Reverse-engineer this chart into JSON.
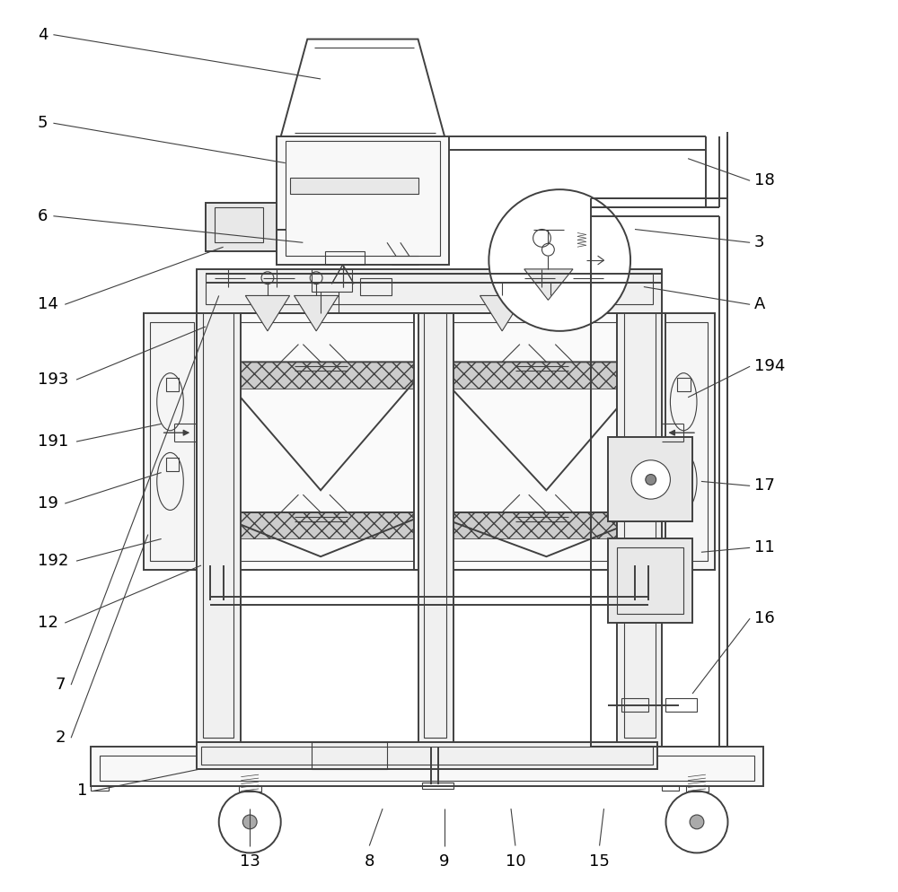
{
  "fig_width": 10.0,
  "fig_height": 9.94,
  "dpi": 100,
  "lc": "#404040",
  "lw": 1.4,
  "tlw": 0.8,
  "fs": 13,
  "bg": "#ffffff",
  "xlim": [
    0,
    100
  ],
  "ylim": [
    0,
    100
  ],
  "labels_left": [
    [
      "4",
      3.5,
      96.5,
      35.5,
      91.5
    ],
    [
      "5",
      3.5,
      86.5,
      31.5,
      82.0
    ],
    [
      "6",
      3.5,
      76.0,
      33.5,
      73.0
    ],
    [
      "14",
      3.5,
      66.0,
      24.5,
      72.5
    ],
    [
      "193",
      3.5,
      57.5,
      22.5,
      63.5
    ],
    [
      "191",
      3.5,
      50.5,
      17.5,
      52.5
    ],
    [
      "19",
      3.5,
      43.5,
      17.5,
      47.0
    ],
    [
      "192",
      3.5,
      37.0,
      17.5,
      39.5
    ],
    [
      "12",
      3.5,
      30.0,
      22.0,
      36.5
    ],
    [
      "7",
      5.5,
      23.0,
      24.0,
      67.0
    ],
    [
      "2",
      5.5,
      17.0,
      16.0,
      40.0
    ],
    [
      "1",
      8.0,
      11.0,
      22.0,
      13.5
    ]
  ],
  "labels_right": [
    [
      "18",
      84.5,
      80.0,
      77.0,
      82.5
    ],
    [
      "3",
      84.5,
      73.0,
      71.0,
      74.5
    ],
    [
      "A",
      84.5,
      66.0,
      72.0,
      68.0
    ],
    [
      "194",
      84.5,
      59.0,
      77.0,
      55.5
    ],
    [
      "17",
      84.5,
      45.5,
      78.5,
      46.0
    ],
    [
      "11",
      84.5,
      38.5,
      78.5,
      38.0
    ],
    [
      "16",
      84.5,
      30.5,
      77.5,
      22.0
    ]
  ],
  "labels_bottom": [
    [
      "13",
      27.5,
      3.0,
      27.5,
      9.0
    ],
    [
      "8",
      41.0,
      3.0,
      42.5,
      9.0
    ],
    [
      "9",
      49.5,
      3.0,
      49.5,
      9.0
    ],
    [
      "10",
      57.5,
      3.0,
      57.0,
      9.0
    ],
    [
      "15",
      67.0,
      3.0,
      67.5,
      9.0
    ]
  ]
}
